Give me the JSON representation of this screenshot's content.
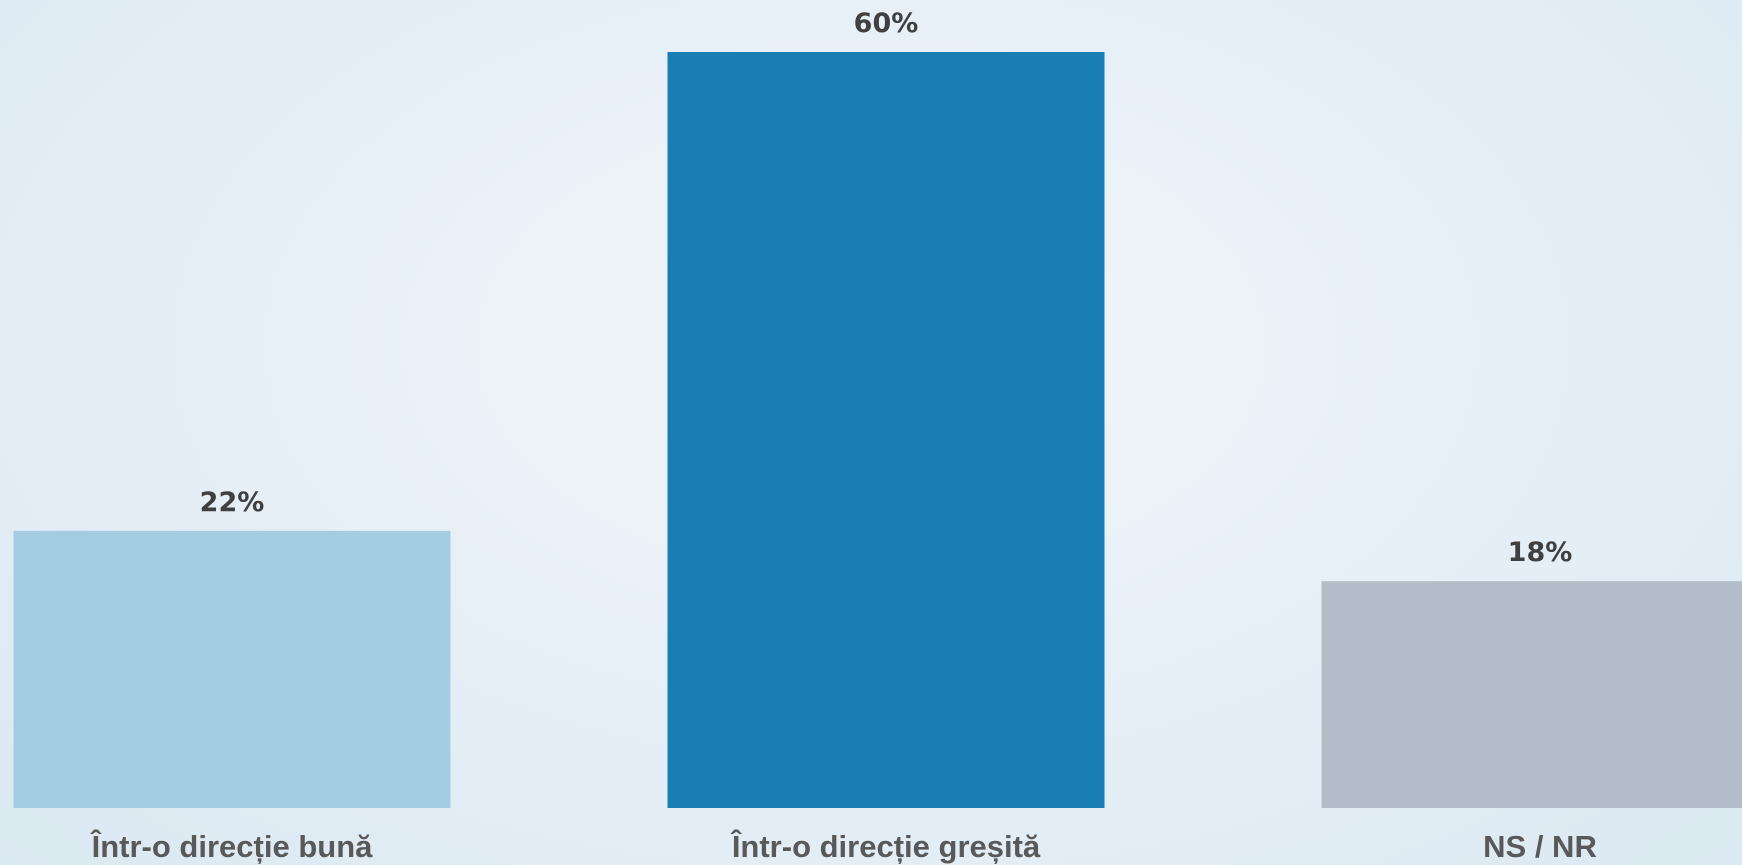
{
  "chart_data": {
    "type": "bar",
    "title": "",
    "xlabel": "",
    "ylabel": "",
    "ylim": [
      0,
      60
    ],
    "grid": false,
    "legend": "none",
    "categories": [
      "Într-o direcție bună",
      "Într-o direcție greșită",
      "NS / NR"
    ],
    "values": [
      22,
      60,
      18
    ],
    "data_labels": [
      "22%",
      "60%",
      "18%"
    ],
    "colors": [
      "#a5cde2",
      "#1a7db3",
      "#b3bdc9"
    ]
  }
}
